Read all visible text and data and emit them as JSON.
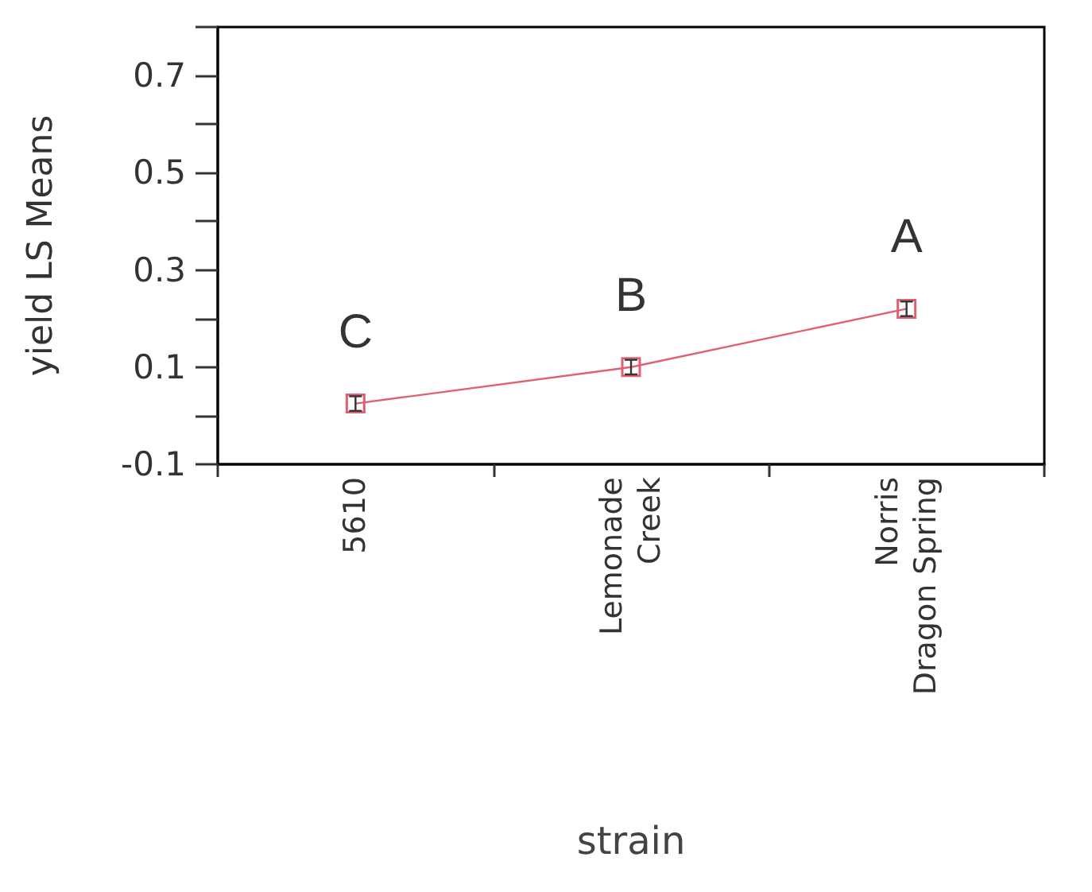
{
  "chart_data": {
    "type": "line",
    "xlabel": "strain",
    "ylabel": "yield LS Means",
    "categories": [
      "5610",
      "Lemonade Creek",
      "Norris Dragon Spring"
    ],
    "series": [
      {
        "color": "#e06070",
        "values": [
          0.025,
          0.1,
          0.22
        ],
        "errors": [
          0.015,
          0.015,
          0.015
        ]
      }
    ],
    "ylim": [
      -0.1,
      0.8
    ],
    "yticks": [
      -0.1,
      {
        "value": 0,
        "label": null
      },
      0.1,
      {
        "value": 0.2,
        "label": null
      },
      0.3,
      {
        "value": 0.4,
        "label": null
      },
      0.5,
      {
        "value": 0.6,
        "label": null
      },
      0.7,
      {
        "value": 0.8,
        "label": null
      }
    ],
    "marker": "square",
    "line_style": "solid",
    "annotations": [
      "C",
      "B",
      "A"
    ]
  }
}
